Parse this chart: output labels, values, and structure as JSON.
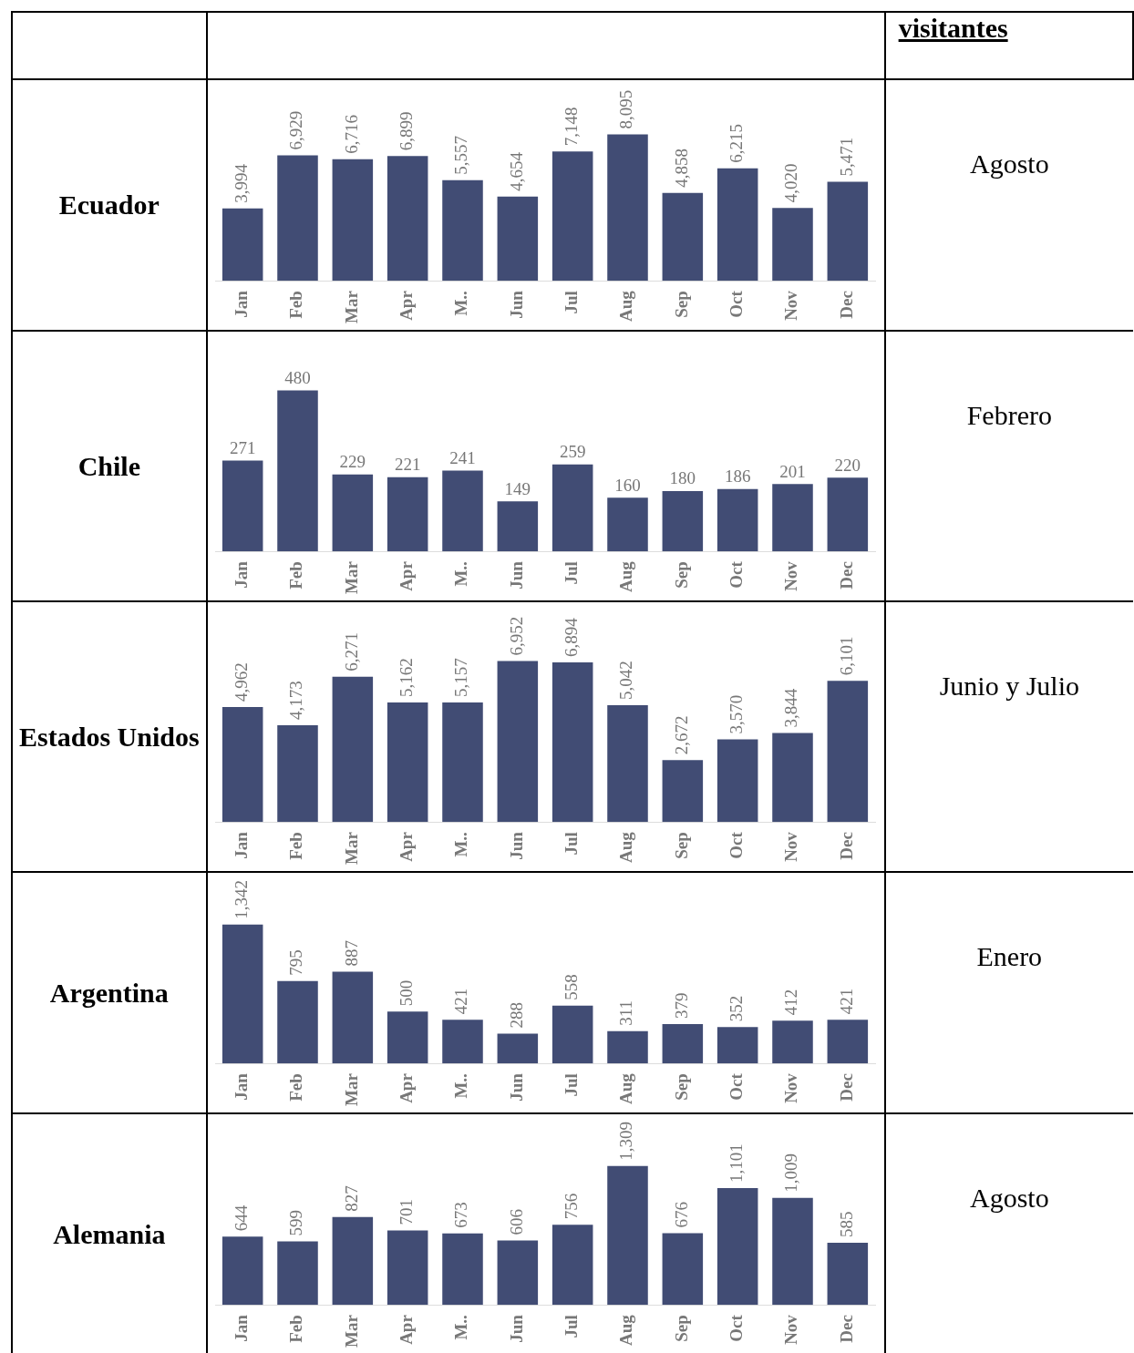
{
  "chart_data": [
    {
      "type": "other",
      "title": "visitantes"
    },
    {
      "type": "bar",
      "title": "Ecuador",
      "categories": [
        "Jan",
        "Feb",
        "Mar",
        "Apr",
        "M..",
        "Jun",
        "Jul",
        "Aug",
        "Sep",
        "Oct",
        "Nov",
        "Dec"
      ],
      "values": [
        3994,
        6929,
        6716,
        6899,
        5557,
        4654,
        7148,
        8095,
        4858,
        6215,
        4020,
        5471
      ],
      "value_labels": [
        "3,994",
        "6,929",
        "6,716",
        "6,899",
        "5,557",
        "4,654",
        "7,148",
        "8,095",
        "4,858",
        "6,215",
        "4,020",
        "5,471"
      ],
      "color": "#414c74",
      "annotations": [
        "Agosto"
      ]
    },
    {
      "type": "bar",
      "title": "Chile",
      "categories": [
        "Jan",
        "Feb",
        "Mar",
        "Apr",
        "M..",
        "Jun",
        "Jul",
        "Aug",
        "Sep",
        "Oct",
        "Nov",
        "Dec"
      ],
      "values": [
        271,
        480,
        229,
        221,
        241,
        149,
        259,
        160,
        180,
        186,
        201,
        220
      ],
      "color": "#414c74",
      "data_labels": true,
      "annotations": [
        "Febrero"
      ]
    },
    {
      "type": "bar",
      "title": "Estados Unidos",
      "categories": [
        "Jan",
        "Feb",
        "Mar",
        "Apr",
        "M..",
        "Jun",
        "Jul",
        "Aug",
        "Sep",
        "Oct",
        "Nov",
        "Dec"
      ],
      "values": [
        4962,
        4173,
        6271,
        5162,
        5157,
        6952,
        6894,
        5042,
        2672,
        3570,
        3844,
        6101
      ],
      "value_labels": [
        "4,962",
        "4,173",
        "6,271",
        "5,162",
        "5,157",
        "6,952",
        "6,894",
        "5,042",
        "2,672",
        "3,570",
        "3,844",
        "6,101"
      ],
      "color": "#414c74",
      "annotations": [
        "Junio y Julio"
      ]
    },
    {
      "type": "bar",
      "title": "Argentina",
      "categories": [
        "Jan",
        "Feb",
        "Mar",
        "Apr",
        "M..",
        "Jun",
        "Jul",
        "Aug",
        "Sep",
        "Oct",
        "Nov",
        "Dec"
      ],
      "values": [
        1342,
        795,
        887,
        500,
        421,
        288,
        558,
        311,
        379,
        352,
        412,
        421
      ],
      "value_labels": [
        "1,342",
        "795",
        "887",
        "500",
        "421",
        "288",
        "558",
        "311",
        "379",
        "352",
        "412",
        "421"
      ],
      "color": "#414c74",
      "annotations": [
        "Enero"
      ]
    },
    {
      "type": "bar",
      "title": "Alemania",
      "categories": [
        "Jan",
        "Feb",
        "Mar",
        "Apr",
        "M..",
        "Jun",
        "Jul",
        "Aug",
        "Sep",
        "Oct",
        "Nov",
        "Dec"
      ],
      "values": [
        644,
        599,
        827,
        701,
        673,
        606,
        756,
        1309,
        676,
        1101,
        1009,
        585
      ],
      "value_labels": [
        "644",
        "599",
        "827",
        "701",
        "673",
        "606",
        "756",
        "1,309",
        "676",
        "1,101",
        "1,009",
        "585"
      ],
      "color": "#414c74",
      "annotations": [
        "Agosto"
      ]
    }
  ]
}
